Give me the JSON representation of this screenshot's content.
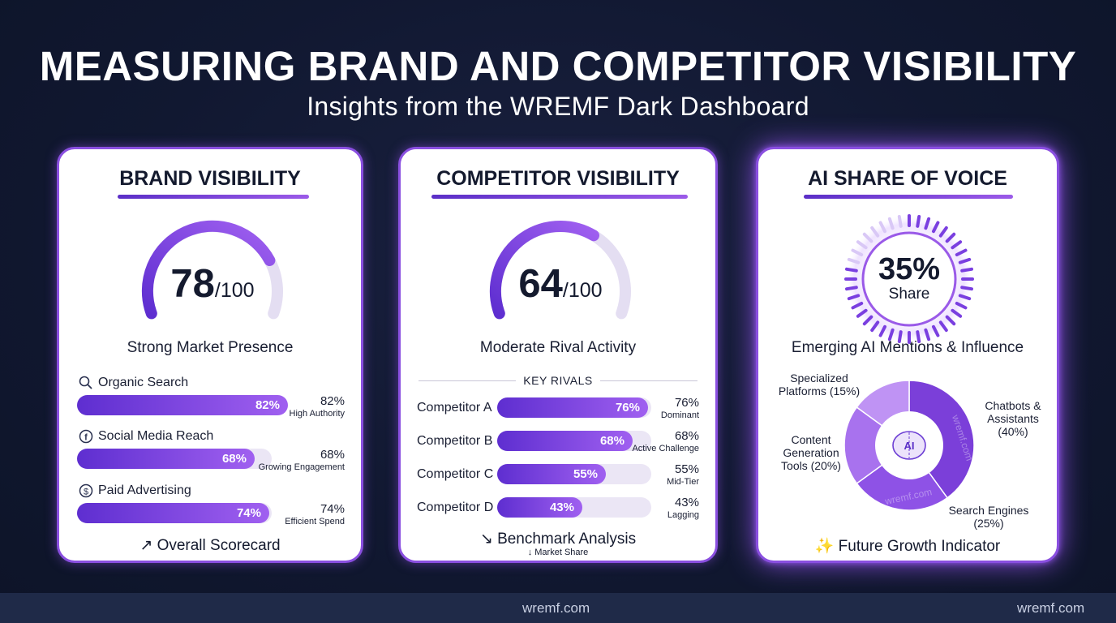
{
  "header": {
    "title": "MEASURING BRAND AND COMPETITOR VISIBILITY",
    "subtitle": "Insights from the WREMF Dark Dashboard"
  },
  "colors": {
    "accent_dark": "#5e2ed0",
    "accent_light": "#a060f0",
    "track": "#ebe6f5",
    "background": "#111831"
  },
  "brand": {
    "title": "BRAND VISIBILITY",
    "score": "78",
    "score_max": "/100",
    "score_value": 78,
    "caption": "Strong Market Presence",
    "metrics": [
      {
        "icon": "search-icon",
        "label": "Organic Search",
        "pct": "82%",
        "value": 82,
        "note": "High Authority"
      },
      {
        "icon": "facebook-icon",
        "label": "Social Media Reach",
        "pct": "68%",
        "value": 68,
        "note": "Growing Engagement"
      },
      {
        "icon": "dollar-icon",
        "label": "Paid Advertising",
        "pct": "74%",
        "value": 74,
        "note": "Efficient Spend"
      }
    ],
    "footer": "Overall Scorecard"
  },
  "competitor": {
    "title": "COMPETITOR VISIBILITY",
    "score": "64",
    "score_max": "/100",
    "score_value": 64,
    "caption": "Moderate Rival Activity",
    "rivals_heading": "KEY RIVALS",
    "rivals": [
      {
        "name": "Competitor A",
        "pct": "76%",
        "value": 76,
        "note": "Dominant"
      },
      {
        "name": "Competitor B",
        "pct": "68%",
        "value": 68,
        "note": "Active Challenge"
      },
      {
        "name": "Competitor C",
        "pct": "55%",
        "value": 55,
        "note": "Mid-Tier"
      },
      {
        "name": "Competitor D",
        "pct": "43%",
        "value": 43,
        "note": "Lagging"
      }
    ],
    "footer": "Benchmark Analysis",
    "footer_sub": "Market Share"
  },
  "ai": {
    "title": "AI SHARE OF VOICE",
    "share": "35%",
    "share_label": "Share",
    "share_value": 35,
    "caption": "Emerging AI Mentions & Influence",
    "center_icon": "ai-brain-icon",
    "center_text": "AI",
    "watermark": "wremf.com",
    "segments": [
      {
        "label_line1": "Chatbots &",
        "label_line2": "Assistants",
        "label_line3": "(40%)",
        "value": 40,
        "color": "#7b3fd9"
      },
      {
        "label_line1": "Search Engines",
        "label_line2": "(25%)",
        "label_line3": "",
        "value": 25,
        "color": "#8e52e6"
      },
      {
        "label_line1": "Content",
        "label_line2": "Generation",
        "label_line3": "Tools (20%)",
        "value": 20,
        "color": "#a872ee"
      },
      {
        "label_line1": "Specialized",
        "label_line2": "Platforms (15%)",
        "label_line3": "",
        "value": 15,
        "color": "#bf93f4"
      }
    ],
    "footer": "Future Growth Indicator"
  },
  "footer_bar": {
    "center_text": "wremf.com",
    "right_text": "wremf.com"
  }
}
